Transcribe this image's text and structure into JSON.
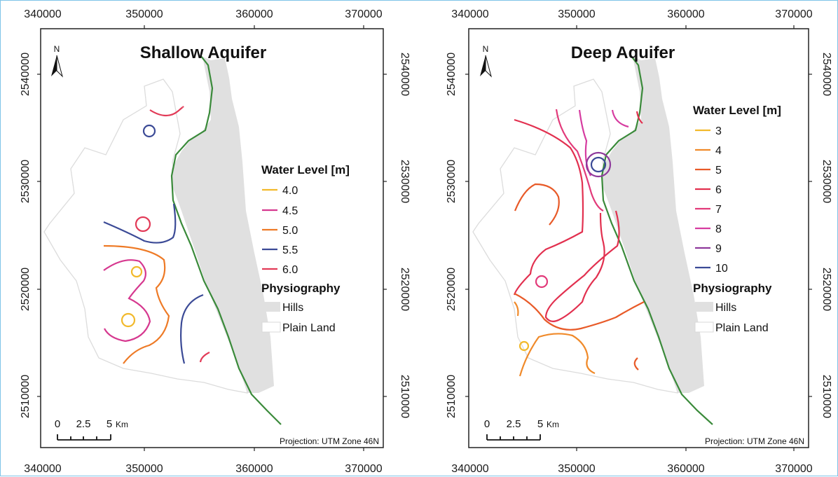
{
  "left_map": {
    "title": "Shallow Aquifer",
    "north_label": "N",
    "x_ticks": [
      "340000",
      "350000",
      "360000",
      "370000"
    ],
    "y_ticks": [
      "2540000",
      "2530000",
      "2520000",
      "2510000"
    ],
    "legend": {
      "heading": "Water Level [m]",
      "items": [
        {
          "label": "4.0",
          "color": "#f2b92b"
        },
        {
          "label": "4.5",
          "color": "#d6388f"
        },
        {
          "label": "5.0",
          "color": "#ee7a26"
        },
        {
          "label": "5.5",
          "color": "#3b4a96"
        },
        {
          "label": "6.0",
          "color": "#e23a57"
        }
      ],
      "physio_heading": "Physiography",
      "physio_items": [
        {
          "label": "Hills",
          "color": "#e0e0e0"
        },
        {
          "label": "Plain Land",
          "color": "#ffffff"
        }
      ]
    },
    "scale": {
      "labels": [
        "0",
        "2.5",
        "5"
      ],
      "unit": "Km"
    },
    "projection": "Projection: UTM Zone 46N"
  },
  "right_map": {
    "title": "Deep Aquifer",
    "north_label": "N",
    "x_ticks": [
      "340000",
      "350000",
      "360000",
      "370000"
    ],
    "y_ticks": [
      "2540000",
      "2530000",
      "2520000",
      "2510000"
    ],
    "legend": {
      "heading": "Water Level [m]",
      "items": [
        {
          "label": "3",
          "color": "#f2b92b"
        },
        {
          "label": "4",
          "color": "#f08a2a"
        },
        {
          "label": "5",
          "color": "#e85a28"
        },
        {
          "label": "6",
          "color": "#e2304f"
        },
        {
          "label": "7",
          "color": "#e23a7a"
        },
        {
          "label": "8",
          "color": "#d63ca0"
        },
        {
          "label": "9",
          "color": "#8e3a9c"
        },
        {
          "label": "10",
          "color": "#3b4a96"
        }
      ],
      "physio_heading": "Physiography",
      "physio_items": [
        {
          "label": "Hills",
          "color": "#e0e0e0"
        },
        {
          "label": "Plain Land",
          "color": "#ffffff"
        }
      ]
    },
    "scale": {
      "labels": [
        "0",
        "2.5",
        "5"
      ],
      "unit": "Km"
    },
    "projection": "Projection: UTM Zone 46N"
  },
  "colors": {
    "boundary_line": "#3a8a3a",
    "hills_fill": "#e0e0e0",
    "plain_outline": "#d8d8d8",
    "frame_border": "#7fc4e8"
  }
}
